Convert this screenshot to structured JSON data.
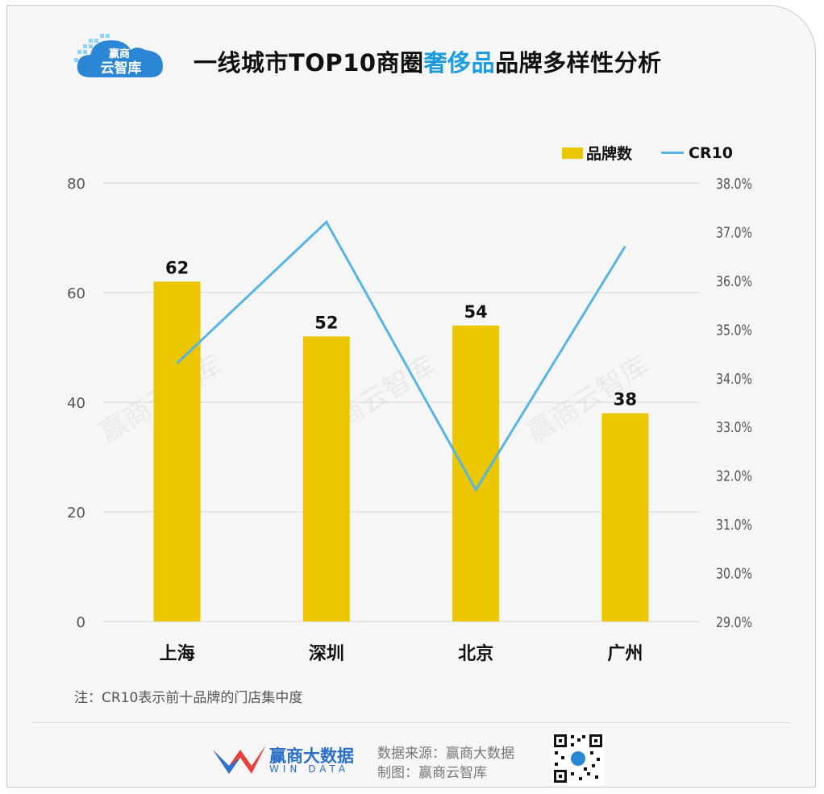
{
  "header": {
    "logo_text": [
      "赢商",
      "云智库"
    ],
    "title_pre": "一线城市TOP10商圈",
    "title_highlight": "奢侈品",
    "title_post": "品牌多样性分析"
  },
  "legend": {
    "bar_label": "品牌数",
    "line_label": "CR10"
  },
  "colors": {
    "bar": "#ecc700",
    "line": "#56b5e6",
    "highlight": "#1d9be0",
    "grid": "#d9d9d9",
    "axis_text": "#555555"
  },
  "chart_data": {
    "type": "bar",
    "categories": [
      "上海",
      "深圳",
      "北京",
      "广州"
    ],
    "series": [
      {
        "name": "品牌数",
        "type": "bar",
        "axis": "left",
        "values": [
          62,
          52,
          54,
          38
        ],
        "show_labels": true
      },
      {
        "name": "CR10",
        "type": "line",
        "axis": "right",
        "values": [
          34.3,
          37.2,
          31.7,
          36.7
        ]
      }
    ],
    "y_left": {
      "min": 0,
      "max": 80,
      "ticks": [
        "0",
        "20",
        "40",
        "60",
        "80"
      ]
    },
    "y_right": {
      "min": 29,
      "max": 38,
      "ticks": [
        "29.0%",
        "30.0%",
        "31.0%",
        "32.0%",
        "33.0%",
        "34.0%",
        "35.0%",
        "36.0%",
        "37.0%",
        "38.0%"
      ]
    },
    "grid": true,
    "legend_position": "top-right",
    "watermark": "赢商云智库"
  },
  "footer": {
    "note": "注：CR10表示前十品牌的门店集中度",
    "brand_name": "赢商大数据",
    "brand_sub": "WIN DATA",
    "source": "数据来源：赢商大数据",
    "made_by": "制图：赢商云智库"
  }
}
